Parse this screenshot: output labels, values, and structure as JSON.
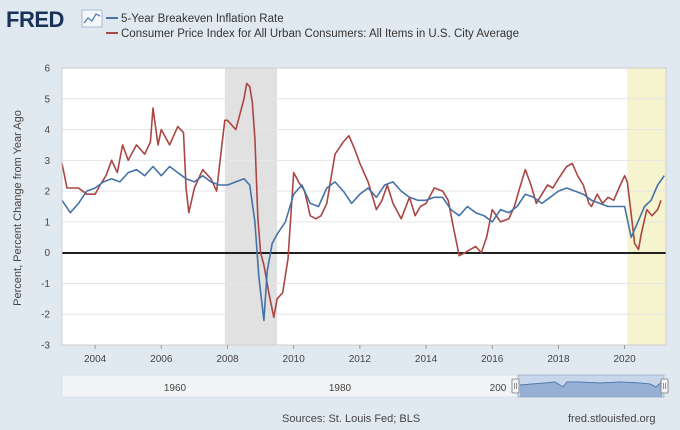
{
  "header": {
    "logo_text": "FRED",
    "logo_icon": "sparkline-icon",
    "legend": [
      {
        "label": "5-Year Breakeven Inflation Rate",
        "color": "#4572a7"
      },
      {
        "label": "Consumer Price Index for All Urban Consumers: All Items in U.S. City Average",
        "color": "#aa4643"
      }
    ]
  },
  "footer": {
    "source": "Sources: St. Louis Fed; BLS",
    "site": "fred.stlouisfed.org"
  },
  "navigator": {
    "labels": [
      "1960",
      "1980",
      "200"
    ]
  },
  "chart_data": {
    "type": "line",
    "ylabel": "Percent, Percent Change from Year Ago",
    "ylim": [
      -3,
      6
    ],
    "xlim": [
      2003.0,
      2021.25
    ],
    "yticks": [
      "-3",
      "-2",
      "-1",
      "0",
      "1",
      "2",
      "3",
      "4",
      "5",
      "6"
    ],
    "xticks": [
      "2004",
      "2006",
      "2008",
      "2010",
      "2012",
      "2014",
      "2016",
      "2018",
      "2020"
    ],
    "recessions": [
      [
        2007.92,
        2009.5
      ],
      [
        2020.08,
        2021.25
      ]
    ],
    "series": [
      {
        "name": "5-Year Breakeven Inflation Rate",
        "color": "#4572a7",
        "points": [
          [
            2003.0,
            1.7
          ],
          [
            2003.25,
            1.3
          ],
          [
            2003.5,
            1.6
          ],
          [
            2003.75,
            2.0
          ],
          [
            2004.0,
            2.1
          ],
          [
            2004.25,
            2.3
          ],
          [
            2004.5,
            2.4
          ],
          [
            2004.75,
            2.3
          ],
          [
            2005.0,
            2.6
          ],
          [
            2005.25,
            2.7
          ],
          [
            2005.5,
            2.5
          ],
          [
            2005.75,
            2.8
          ],
          [
            2006.0,
            2.5
          ],
          [
            2006.25,
            2.8
          ],
          [
            2006.5,
            2.6
          ],
          [
            2006.75,
            2.4
          ],
          [
            2007.0,
            2.3
          ],
          [
            2007.25,
            2.5
          ],
          [
            2007.5,
            2.3
          ],
          [
            2007.75,
            2.2
          ],
          [
            2008.0,
            2.2
          ],
          [
            2008.25,
            2.3
          ],
          [
            2008.5,
            2.4
          ],
          [
            2008.67,
            2.2
          ],
          [
            2008.83,
            1.0
          ],
          [
            2008.95,
            -0.8
          ],
          [
            2009.1,
            -2.2
          ],
          [
            2009.2,
            -0.6
          ],
          [
            2009.35,
            0.3
          ],
          [
            2009.5,
            0.6
          ],
          [
            2009.75,
            1.0
          ],
          [
            2010.0,
            1.9
          ],
          [
            2010.25,
            2.2
          ],
          [
            2010.5,
            1.6
          ],
          [
            2010.75,
            1.5
          ],
          [
            2011.0,
            2.1
          ],
          [
            2011.25,
            2.3
          ],
          [
            2011.5,
            2.0
          ],
          [
            2011.75,
            1.6
          ],
          [
            2012.0,
            1.9
          ],
          [
            2012.25,
            2.1
          ],
          [
            2012.5,
            1.8
          ],
          [
            2012.75,
            2.2
          ],
          [
            2013.0,
            2.3
          ],
          [
            2013.25,
            2.0
          ],
          [
            2013.5,
            1.8
          ],
          [
            2013.75,
            1.7
          ],
          [
            2014.0,
            1.7
          ],
          [
            2014.25,
            1.8
          ],
          [
            2014.5,
            1.8
          ],
          [
            2014.75,
            1.4
          ],
          [
            2015.0,
            1.2
          ],
          [
            2015.25,
            1.5
          ],
          [
            2015.5,
            1.3
          ],
          [
            2015.75,
            1.2
          ],
          [
            2016.0,
            1.0
          ],
          [
            2016.25,
            1.4
          ],
          [
            2016.5,
            1.3
          ],
          [
            2016.75,
            1.5
          ],
          [
            2017.0,
            1.9
          ],
          [
            2017.25,
            1.8
          ],
          [
            2017.5,
            1.6
          ],
          [
            2017.75,
            1.8
          ],
          [
            2018.0,
            2.0
          ],
          [
            2018.25,
            2.1
          ],
          [
            2018.5,
            2.0
          ],
          [
            2018.75,
            1.9
          ],
          [
            2019.0,
            1.7
          ],
          [
            2019.25,
            1.6
          ],
          [
            2019.5,
            1.5
          ],
          [
            2019.75,
            1.5
          ],
          [
            2020.0,
            1.5
          ],
          [
            2020.2,
            0.5
          ],
          [
            2020.4,
            1.0
          ],
          [
            2020.6,
            1.5
          ],
          [
            2020.8,
            1.7
          ],
          [
            2021.0,
            2.2
          ],
          [
            2021.2,
            2.5
          ]
        ]
      },
      {
        "name": "Consumer Price Index for All Urban Consumers: All Items in U.S. City Average",
        "color": "#aa4643",
        "points": [
          [
            2003.0,
            2.9
          ],
          [
            2003.15,
            2.1
          ],
          [
            2003.35,
            2.1
          ],
          [
            2003.5,
            2.1
          ],
          [
            2003.75,
            1.9
          ],
          [
            2004.0,
            1.9
          ],
          [
            2004.15,
            2.2
          ],
          [
            2004.33,
            2.5
          ],
          [
            2004.5,
            3.0
          ],
          [
            2004.67,
            2.6
          ],
          [
            2004.83,
            3.5
          ],
          [
            2005.0,
            3.0
          ],
          [
            2005.25,
            3.5
          ],
          [
            2005.5,
            3.2
          ],
          [
            2005.67,
            3.6
          ],
          [
            2005.75,
            4.7
          ],
          [
            2005.9,
            3.5
          ],
          [
            2006.0,
            4.0
          ],
          [
            2006.25,
            3.5
          ],
          [
            2006.5,
            4.1
          ],
          [
            2006.67,
            3.9
          ],
          [
            2006.75,
            2.1
          ],
          [
            2006.83,
            1.3
          ],
          [
            2007.0,
            2.1
          ],
          [
            2007.25,
            2.7
          ],
          [
            2007.5,
            2.4
          ],
          [
            2007.67,
            2.0
          ],
          [
            2007.83,
            3.5
          ],
          [
            2007.92,
            4.3
          ],
          [
            2008.0,
            4.3
          ],
          [
            2008.25,
            4.0
          ],
          [
            2008.5,
            5.0
          ],
          [
            2008.58,
            5.5
          ],
          [
            2008.67,
            5.4
          ],
          [
            2008.75,
            4.9
          ],
          [
            2008.83,
            3.7
          ],
          [
            2008.92,
            1.1
          ],
          [
            2009.0,
            0.0
          ],
          [
            2009.1,
            -0.4
          ],
          [
            2009.25,
            -1.3
          ],
          [
            2009.4,
            -2.1
          ],
          [
            2009.5,
            -1.5
          ],
          [
            2009.67,
            -1.3
          ],
          [
            2009.83,
            -0.2
          ],
          [
            2010.0,
            2.6
          ],
          [
            2010.15,
            2.3
          ],
          [
            2010.33,
            2.0
          ],
          [
            2010.5,
            1.2
          ],
          [
            2010.67,
            1.1
          ],
          [
            2010.83,
            1.2
          ],
          [
            2011.0,
            1.6
          ],
          [
            2011.25,
            3.2
          ],
          [
            2011.5,
            3.6
          ],
          [
            2011.67,
            3.8
          ],
          [
            2011.83,
            3.4
          ],
          [
            2012.0,
            2.9
          ],
          [
            2012.25,
            2.3
          ],
          [
            2012.5,
            1.4
          ],
          [
            2012.67,
            1.7
          ],
          [
            2012.83,
            2.2
          ],
          [
            2013.0,
            1.6
          ],
          [
            2013.25,
            1.1
          ],
          [
            2013.5,
            1.8
          ],
          [
            2013.67,
            1.2
          ],
          [
            2013.83,
            1.5
          ],
          [
            2014.0,
            1.6
          ],
          [
            2014.25,
            2.1
          ],
          [
            2014.5,
            2.0
          ],
          [
            2014.67,
            1.7
          ],
          [
            2014.83,
            0.8
          ],
          [
            2015.0,
            -0.1
          ],
          [
            2015.17,
            0.0
          ],
          [
            2015.33,
            0.1
          ],
          [
            2015.5,
            0.2
          ],
          [
            2015.67,
            0.0
          ],
          [
            2015.83,
            0.5
          ],
          [
            2016.0,
            1.4
          ],
          [
            2016.25,
            1.0
          ],
          [
            2016.5,
            1.1
          ],
          [
            2016.67,
            1.5
          ],
          [
            2016.83,
            2.1
          ],
          [
            2017.0,
            2.7
          ],
          [
            2017.17,
            2.2
          ],
          [
            2017.33,
            1.6
          ],
          [
            2017.5,
            1.9
          ],
          [
            2017.67,
            2.2
          ],
          [
            2017.83,
            2.1
          ],
          [
            2018.0,
            2.4
          ],
          [
            2018.25,
            2.8
          ],
          [
            2018.42,
            2.9
          ],
          [
            2018.58,
            2.5
          ],
          [
            2018.75,
            2.2
          ],
          [
            2018.92,
            1.6
          ],
          [
            2019.0,
            1.5
          ],
          [
            2019.17,
            1.9
          ],
          [
            2019.33,
            1.6
          ],
          [
            2019.5,
            1.8
          ],
          [
            2019.67,
            1.7
          ],
          [
            2019.83,
            2.1
          ],
          [
            2020.0,
            2.5
          ],
          [
            2020.08,
            2.3
          ],
          [
            2020.17,
            1.5
          ],
          [
            2020.3,
            0.3
          ],
          [
            2020.42,
            0.1
          ],
          [
            2020.5,
            0.6
          ],
          [
            2020.67,
            1.4
          ],
          [
            2020.83,
            1.2
          ],
          [
            2021.0,
            1.4
          ],
          [
            2021.1,
            1.7
          ]
        ]
      }
    ]
  }
}
